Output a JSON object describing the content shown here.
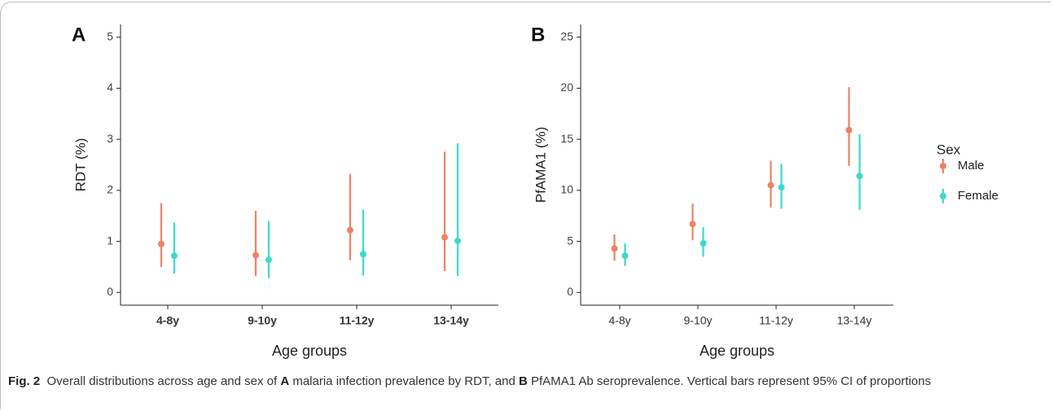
{
  "chart_data": [
    {
      "type": "errorbar",
      "panel_label": "A",
      "x_label": "Age groups",
      "y_label": "RDT (%)",
      "categories": [
        "4-8y",
        "9-10y",
        "11-12y",
        "13-14y"
      ],
      "ylim": [
        -0.25,
        5.25
      ],
      "yticks": [
        0,
        1,
        2,
        3,
        4,
        5
      ],
      "series": [
        {
          "name": "Male",
          "color": "#ee8263",
          "values": [
            0.95,
            0.73,
            1.22,
            1.08
          ],
          "lower": [
            0.5,
            0.32,
            0.63,
            0.42
          ],
          "upper": [
            1.75,
            1.6,
            2.32,
            2.76
          ]
        },
        {
          "name": "Female",
          "color": "#3ed9c8",
          "values": [
            0.72,
            0.64,
            0.75,
            1.01
          ],
          "lower": [
            0.37,
            0.28,
            0.33,
            0.32
          ],
          "upper": [
            1.37,
            1.4,
            1.62,
            2.92
          ]
        }
      ]
    },
    {
      "type": "errorbar",
      "panel_label": "B",
      "x_label": "Age groups",
      "y_label": "PfAMA1 (%)",
      "legend_title": "Sex",
      "categories": [
        "4-8y",
        "9-10y",
        "11-12y",
        "13-14y"
      ],
      "ylim": [
        -1.25,
        26.25
      ],
      "yticks": [
        0,
        5,
        10,
        15,
        20,
        25
      ],
      "series": [
        {
          "name": "Male",
          "color": "#ee8263",
          "values": [
            4.3,
            6.7,
            10.5,
            15.9
          ],
          "lower": [
            3.1,
            5.1,
            8.3,
            12.4
          ],
          "upper": [
            5.7,
            8.7,
            12.9,
            20.1
          ]
        },
        {
          "name": "Female",
          "color": "#3ed9c8",
          "values": [
            3.6,
            4.8,
            10.3,
            11.4
          ],
          "lower": [
            2.6,
            3.5,
            8.2,
            8.1
          ],
          "upper": [
            4.8,
            6.4,
            12.6,
            15.5
          ]
        }
      ]
    }
  ],
  "caption": {
    "label": "Fig. 2",
    "segments": [
      "Overall distributions across age and sex of ",
      "A",
      " malaria infection prevalence by RDT, and ",
      "B",
      " PfAMA1 Ab seroprevalence. Vertical bars represent 95% CI of proportions"
    ]
  }
}
